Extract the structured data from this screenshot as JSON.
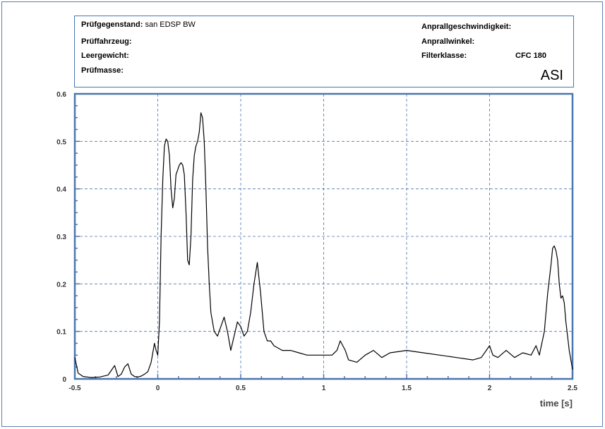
{
  "header": {
    "pruefgegenstand_label": "Prüfgegenstand:",
    "pruefgegenstand_value": "san EDSP BW",
    "pruefahrzeug_label": "Prüffahrzeug:",
    "leergewicht_label": "Leergewicht:",
    "pruefmasse_label": "Prüfmasse:",
    "anprallgeschwindigkeit_label": "Anprallgeschwindigkeit:",
    "anprallwinkel_label": "Anprallwinkel:",
    "filterklasse_label": "Filterklasse:",
    "filterklasse_value": "CFC 180",
    "signal": "ASI"
  },
  "colors": {
    "frame": "#4a76b0",
    "grid": "#4a76b0",
    "curve": "#000000"
  },
  "chart_data": {
    "type": "line",
    "title": "ASI",
    "xlabel": "time [s]",
    "ylabel": "",
    "xlim": [
      -0.5,
      2.5
    ],
    "ylim": [
      0,
      0.6
    ],
    "grid": true,
    "xticks": [
      -0.5,
      0,
      0.5,
      1,
      1.5,
      2,
      2.5
    ],
    "xtick_labels": [
      "-0.5",
      "0",
      "0.5",
      "1",
      "1.5",
      "2",
      "2.5"
    ],
    "yticks": [
      0,
      0.1,
      0.2,
      0.3,
      0.4,
      0.5,
      0.6
    ],
    "ytick_labels": [
      "0",
      "0.1",
      "0.2",
      "0.3",
      "0.4",
      "0.5",
      "0.6"
    ],
    "series": [
      {
        "x": [
          -0.5,
          -0.48,
          -0.45,
          -0.4,
          -0.35,
          -0.3,
          -0.26,
          -0.24,
          -0.22,
          -0.2,
          -0.18,
          -0.16,
          -0.14,
          -0.12,
          -0.1,
          -0.08,
          -0.06,
          -0.04,
          -0.02,
          -0.01,
          0.0,
          0.01,
          0.02,
          0.03,
          0.04,
          0.05,
          0.06,
          0.07,
          0.08,
          0.09,
          0.1,
          0.11,
          0.12,
          0.13,
          0.14,
          0.15,
          0.16,
          0.17,
          0.18,
          0.19,
          0.2,
          0.21,
          0.22,
          0.23,
          0.24,
          0.25,
          0.26,
          0.27,
          0.28,
          0.29,
          0.3,
          0.31,
          0.32,
          0.34,
          0.36,
          0.38,
          0.4,
          0.42,
          0.44,
          0.46,
          0.48,
          0.5,
          0.52,
          0.54,
          0.56,
          0.58,
          0.6,
          0.62,
          0.64,
          0.66,
          0.68,
          0.7,
          0.75,
          0.8,
          0.85,
          0.9,
          0.95,
          1.0,
          1.05,
          1.08,
          1.1,
          1.13,
          1.15,
          1.2,
          1.25,
          1.3,
          1.35,
          1.4,
          1.5,
          1.6,
          1.7,
          1.8,
          1.9,
          1.95,
          2.0,
          2.02,
          2.05,
          2.1,
          2.15,
          2.2,
          2.25,
          2.28,
          2.3,
          2.33,
          2.35,
          2.37,
          2.38,
          2.39,
          2.4,
          2.41,
          2.42,
          2.43,
          2.44,
          2.45,
          2.46,
          2.47,
          2.48,
          2.5
        ],
        "y": [
          0.045,
          0.012,
          0.005,
          0.003,
          0.004,
          0.008,
          0.028,
          0.005,
          0.01,
          0.025,
          0.032,
          0.01,
          0.005,
          0.004,
          0.006,
          0.01,
          0.015,
          0.035,
          0.075,
          0.06,
          0.05,
          0.12,
          0.3,
          0.42,
          0.49,
          0.505,
          0.5,
          0.47,
          0.4,
          0.36,
          0.38,
          0.43,
          0.44,
          0.45,
          0.455,
          0.45,
          0.43,
          0.35,
          0.25,
          0.24,
          0.3,
          0.42,
          0.47,
          0.49,
          0.5,
          0.52,
          0.56,
          0.55,
          0.5,
          0.4,
          0.28,
          0.2,
          0.14,
          0.1,
          0.09,
          0.11,
          0.13,
          0.1,
          0.06,
          0.09,
          0.12,
          0.11,
          0.09,
          0.1,
          0.14,
          0.2,
          0.245,
          0.18,
          0.1,
          0.08,
          0.08,
          0.07,
          0.06,
          0.06,
          0.055,
          0.05,
          0.05,
          0.05,
          0.05,
          0.06,
          0.08,
          0.06,
          0.04,
          0.035,
          0.05,
          0.06,
          0.045,
          0.055,
          0.06,
          0.055,
          0.05,
          0.045,
          0.04,
          0.045,
          0.07,
          0.05,
          0.045,
          0.06,
          0.045,
          0.055,
          0.05,
          0.07,
          0.05,
          0.1,
          0.18,
          0.24,
          0.275,
          0.28,
          0.27,
          0.25,
          0.2,
          0.17,
          0.175,
          0.16,
          0.12,
          0.09,
          0.06,
          0.02
        ]
      }
    ]
  }
}
